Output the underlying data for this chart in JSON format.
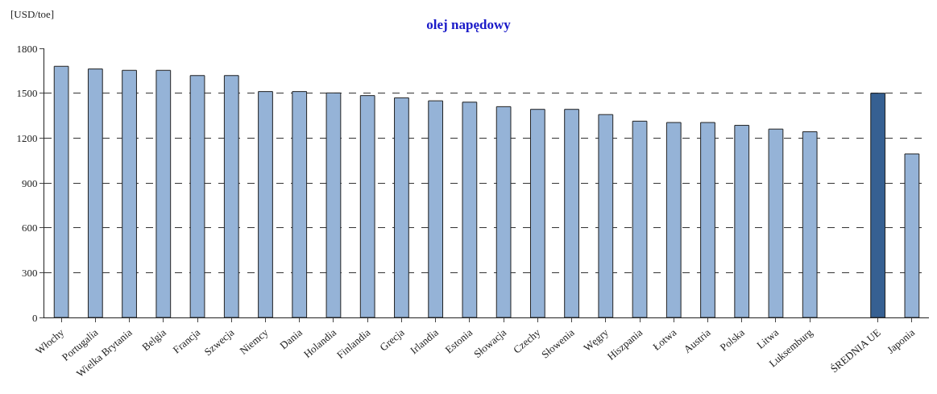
{
  "chart_data": {
    "type": "bar",
    "title": "olej napędowy",
    "ylabel": "[USD/toe]",
    "categories": [
      "Włochy",
      "Portugalia",
      "Wielka Brytania",
      "Belgia",
      "Francja",
      "Szwecja",
      "Niemcy",
      "Dania",
      "Holandia",
      "Finlandia",
      "Grecja",
      "Irlandia",
      "Estonia",
      "Słowacja",
      "Czechy",
      "Słowenia",
      "Węgry",
      "Hiszpania",
      "Łotwa",
      "Austria",
      "Polska",
      "Litwa",
      "Luksemburg",
      null,
      "ŚREDNIA UE",
      "Japonia"
    ],
    "values": [
      1680,
      1662,
      1653,
      1653,
      1618,
      1618,
      1511,
      1511,
      1502,
      1484,
      1469,
      1449,
      1440,
      1410,
      1392,
      1392,
      1357,
      1313,
      1304,
      1304,
      1285,
      1260,
      1242,
      null,
      1500,
      1094
    ],
    "colors": [
      "#95b3d7",
      "#95b3d7",
      "#95b3d7",
      "#95b3d7",
      "#95b3d7",
      "#95b3d7",
      "#95b3d7",
      "#95b3d7",
      "#95b3d7",
      "#95b3d7",
      "#95b3d7",
      "#95b3d7",
      "#95b3d7",
      "#95b3d7",
      "#95b3d7",
      "#95b3d7",
      "#95b3d7",
      "#95b3d7",
      "#95b3d7",
      "#95b3d7",
      "#95b3d7",
      "#95b3d7",
      "#95b3d7",
      "#95b3d7",
      "#366092",
      "#95b3d7"
    ],
    "ylim": [
      0,
      1800
    ],
    "yticks": [
      0,
      300,
      600,
      900,
      1200,
      1500,
      1800
    ],
    "grid": "y",
    "legend": false
  }
}
